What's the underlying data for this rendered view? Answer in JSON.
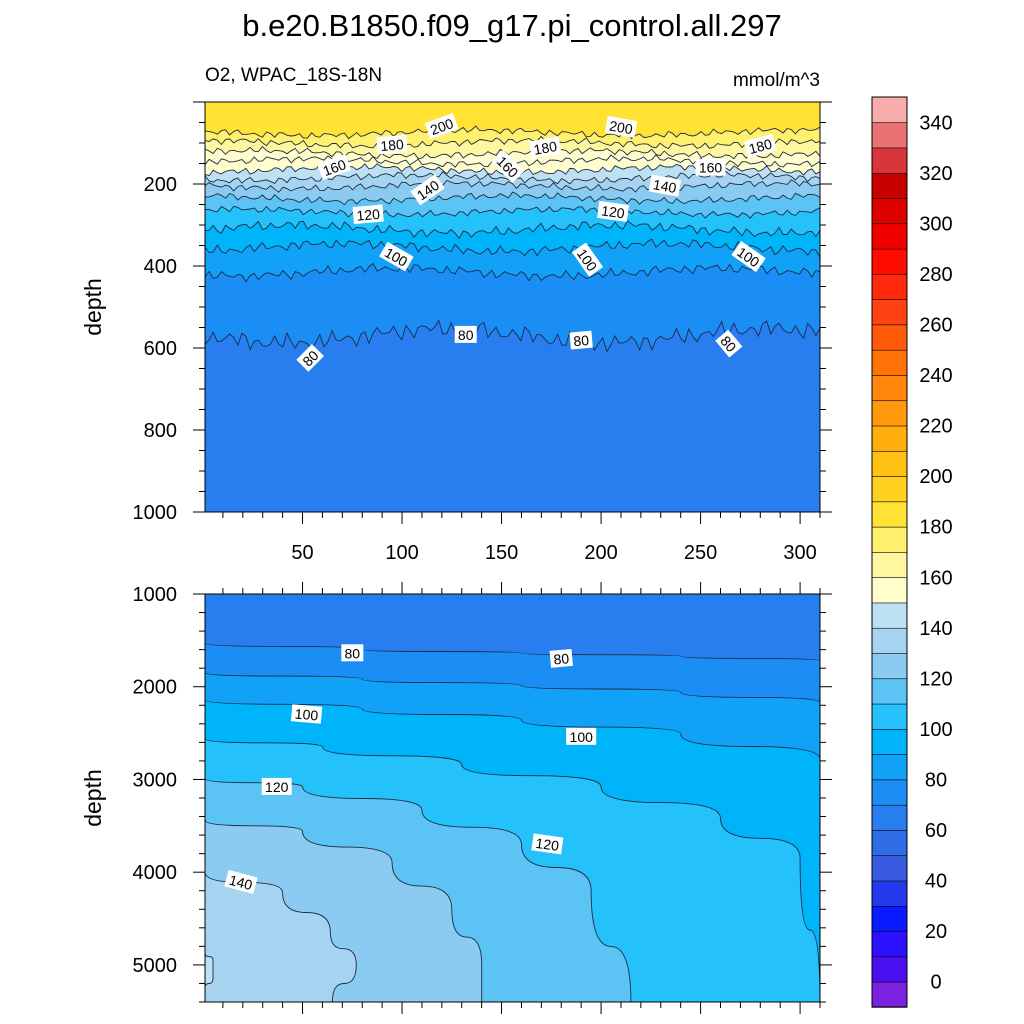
{
  "title": "b.e20.B1850.f09_g17.pi_control.all.297",
  "subtitle_left": "O2, WPAC_18S-18N",
  "subtitle_right": "mmol/m^3",
  "chart_data": [
    {
      "type": "contour",
      "panel": "upper",
      "ylabel": "depth",
      "xlabel": "",
      "xlim": [
        1,
        310
      ],
      "ylim": [
        1000,
        0
      ],
      "xticks": [
        50,
        100,
        150,
        200,
        250,
        300
      ],
      "yticks": [
        200,
        400,
        600,
        800,
        1000
      ],
      "contour_levels": [
        80,
        90,
        100,
        110,
        120,
        130,
        140,
        150,
        160,
        170,
        180,
        190,
        200
      ],
      "contour_depths": [
        {
          "level": 80,
          "depth": 570
        },
        {
          "level": 90,
          "depth": 415
        },
        {
          "level": 100,
          "depth": 355
        },
        {
          "level": 110,
          "depth": 310
        },
        {
          "level": 120,
          "depth": 268
        },
        {
          "level": 130,
          "depth": 235
        },
        {
          "level": 140,
          "depth": 205
        },
        {
          "level": 150,
          "depth": 185
        },
        {
          "level": 160,
          "depth": 165
        },
        {
          "level": 170,
          "depth": 145
        },
        {
          "level": 180,
          "depth": 125
        },
        {
          "level": 190,
          "depth": 100
        },
        {
          "level": 200,
          "depth": 75
        }
      ],
      "line_labels": [
        {
          "text": "200",
          "x": 120,
          "depth": 60,
          "angle": -20
        },
        {
          "text": "200",
          "x": 210,
          "depth": 62,
          "angle": 10
        },
        {
          "text": "180",
          "x": 95,
          "depth": 105,
          "angle": -5
        },
        {
          "text": "180",
          "x": 172,
          "depth": 112,
          "angle": -10
        },
        {
          "text": "180",
          "x": 280,
          "depth": 108,
          "angle": -15
        },
        {
          "text": "160",
          "x": 66,
          "depth": 160,
          "angle": -20
        },
        {
          "text": "160",
          "x": 153,
          "depth": 158,
          "angle": 45
        },
        {
          "text": "160",
          "x": 255,
          "depth": 160,
          "angle": 0
        },
        {
          "text": "140",
          "x": 113,
          "depth": 215,
          "angle": -35
        },
        {
          "text": "140",
          "x": 232,
          "depth": 205,
          "angle": 10
        },
        {
          "text": "120",
          "x": 83,
          "depth": 275,
          "angle": -5
        },
        {
          "text": "120",
          "x": 206,
          "depth": 268,
          "angle": 8
        },
        {
          "text": "100",
          "x": 97,
          "depth": 378,
          "angle": 30
        },
        {
          "text": "100",
          "x": 193,
          "depth": 385,
          "angle": 55
        },
        {
          "text": "100",
          "x": 274,
          "depth": 378,
          "angle": 35
        },
        {
          "text": "80",
          "x": 54,
          "depth": 625,
          "angle": -45
        },
        {
          "text": "80",
          "x": 132,
          "depth": 568,
          "angle": 0
        },
        {
          "text": "80",
          "x": 190,
          "depth": 582,
          "angle": -5
        },
        {
          "text": "80",
          "x": 264,
          "depth": 590,
          "angle": 50
        }
      ]
    },
    {
      "type": "contour",
      "panel": "lower",
      "ylabel": "depth",
      "xlabel": "",
      "xlim": [
        1,
        310
      ],
      "ylim": [
        1000,
        5400
      ],
      "yticks": [
        1000,
        2000,
        3000,
        4000,
        5000
      ],
      "contour_levels": [
        80,
        90,
        100,
        110,
        120,
        130,
        140,
        150
      ],
      "line_labels": [
        {
          "text": "80",
          "x": 75,
          "depth": 1640,
          "angle": 0
        },
        {
          "text": "80",
          "x": 180,
          "depth": 1700,
          "angle": -5
        },
        {
          "text": "100",
          "x": 52,
          "depth": 2300,
          "angle": 5
        },
        {
          "text": "100",
          "x": 190,
          "depth": 2540,
          "angle": 0
        },
        {
          "text": "120",
          "x": 37,
          "depth": 3080,
          "angle": 0
        },
        {
          "text": "120",
          "x": 173,
          "depth": 3700,
          "angle": 8
        },
        {
          "text": "140",
          "x": 19,
          "depth": 4110,
          "angle": 15
        }
      ]
    }
  ],
  "colorbar": {
    "labels": [
      "0",
      "20",
      "40",
      "60",
      "80",
      "100",
      "120",
      "140",
      "160",
      "180",
      "200",
      "220",
      "240",
      "260",
      "280",
      "300",
      "320",
      "340"
    ],
    "colors": [
      "#7b22e0",
      "#4b10f0",
      "#2c10ff",
      "#0a1cff",
      "#2438ec",
      "#3a5ae2",
      "#2f6de6",
      "#287eee",
      "#1a8ef4",
      "#11a2f8",
      "#00b4fa",
      "#25c1fb",
      "#5cc4f4",
      "#8ccbf1",
      "#a6d4f0",
      "#bde0f2",
      "#fffccd",
      "#fff7a0",
      "#fff06e",
      "#ffe233",
      "#ffd11e",
      "#ffc014",
      "#ffae0d",
      "#ff9a0e",
      "#ff860a",
      "#ff7306",
      "#ff5a0a",
      "#ff4212",
      "#ff2a0c",
      "#ff0d00",
      "#f20000",
      "#e00000",
      "#c80000",
      "#d8363a",
      "#eb7272",
      "#f8acac"
    ]
  }
}
